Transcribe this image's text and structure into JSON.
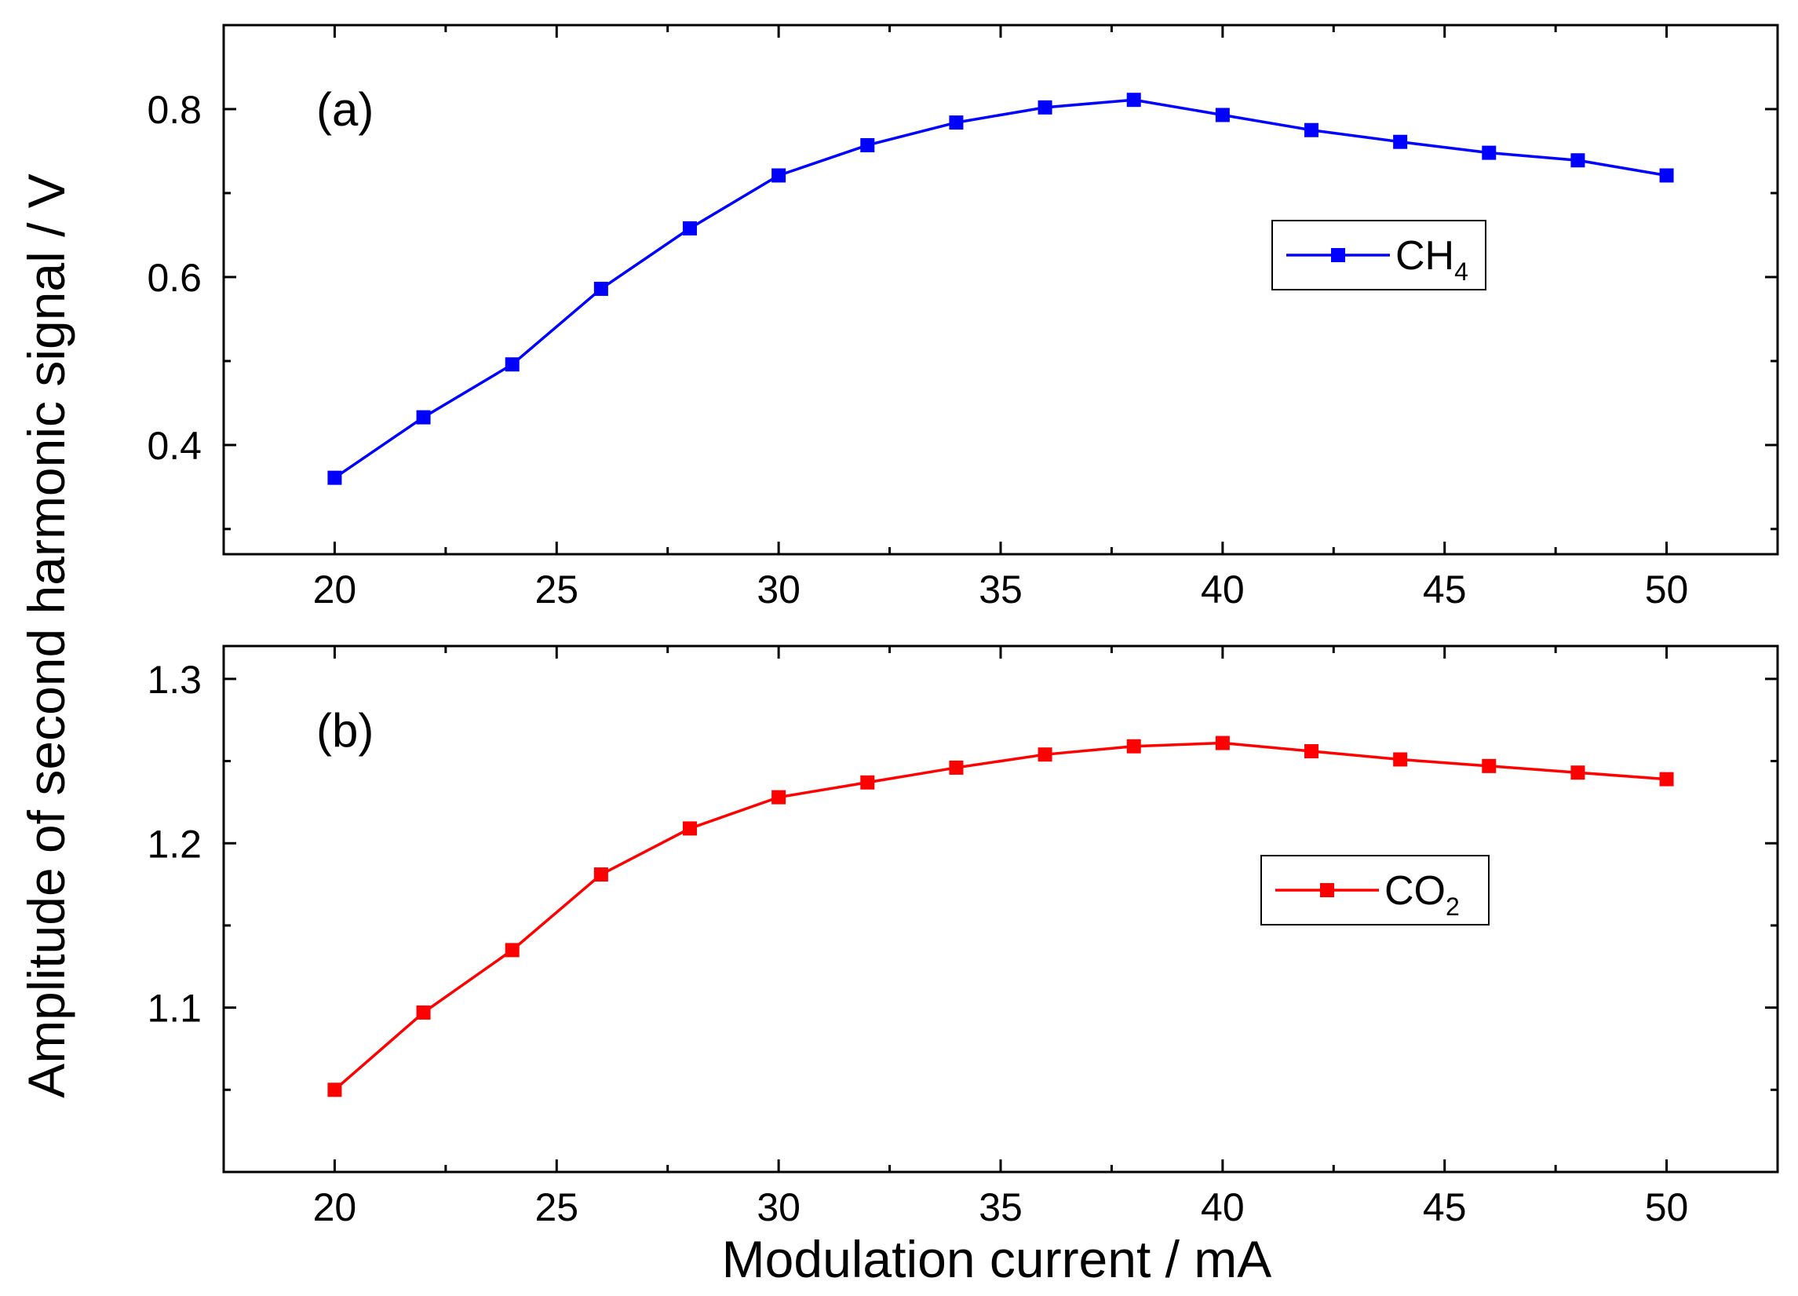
{
  "figure": {
    "ylabel": "Amplitude of second harmonic signal / V",
    "xlabel": "Modulation current / mA"
  },
  "chart_data": [
    {
      "type": "line",
      "panel": "(a)",
      "x": [
        20,
        22,
        24,
        26,
        28,
        30,
        32,
        34,
        36,
        38,
        40,
        42,
        44,
        46,
        48,
        50
      ],
      "series": [
        {
          "name": "CH4",
          "legend_main": "CH",
          "legend_sub": "4",
          "color": "#0000ff",
          "values": [
            0.361,
            0.433,
            0.496,
            0.586,
            0.658,
            0.721,
            0.757,
            0.784,
            0.802,
            0.811,
            0.793,
            0.775,
            0.761,
            0.748,
            0.739,
            0.721
          ]
        }
      ],
      "xlim": [
        17.5,
        52.5
      ],
      "ylim": [
        0.27,
        0.9
      ],
      "xticks": [
        20,
        25,
        30,
        35,
        40,
        45,
        50
      ],
      "xtick_labels": [
        "20",
        "25",
        "30",
        "35",
        "40",
        "45",
        "50"
      ],
      "yticks": [
        0.4,
        0.6,
        0.8
      ],
      "ytick_labels": [
        "0.4",
        "0.6",
        "0.8"
      ],
      "yminor": [
        0.3,
        0.5,
        0.7
      ],
      "legend_position": "right-middle",
      "grid": false
    },
    {
      "type": "line",
      "panel": "(b)",
      "x": [
        20,
        22,
        24,
        26,
        28,
        30,
        32,
        34,
        36,
        38,
        40,
        42,
        44,
        46,
        48,
        50
      ],
      "series": [
        {
          "name": "CO2",
          "legend_main": "CO",
          "legend_sub": "2",
          "color": "#ff0000",
          "values": [
            1.05,
            1.097,
            1.135,
            1.181,
            1.209,
            1.228,
            1.237,
            1.246,
            1.254,
            1.259,
            1.261,
            1.256,
            1.251,
            1.247,
            1.243,
            1.239
          ]
        }
      ],
      "xlim": [
        17.5,
        52.5
      ],
      "ylim": [
        1.0,
        1.32
      ],
      "xticks": [
        20,
        25,
        30,
        35,
        40,
        45,
        50
      ],
      "xtick_labels": [
        "20",
        "25",
        "30",
        "35",
        "40",
        "45",
        "50"
      ],
      "yticks": [
        1.1,
        1.2,
        1.3
      ],
      "ytick_labels": [
        "1.1",
        "1.2",
        "1.3"
      ],
      "yminor": [
        1.05,
        1.15,
        1.25
      ],
      "legend_position": "right-middle",
      "grid": false
    }
  ]
}
